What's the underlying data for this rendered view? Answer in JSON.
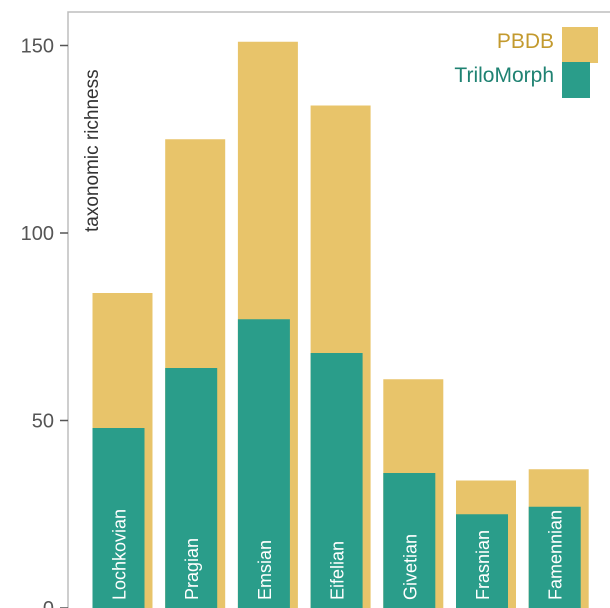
{
  "chart_data": {
    "type": "bar",
    "categories": [
      "Lochkovian",
      "Pragian",
      "Emsian",
      "Eifelian",
      "Givetian",
      "Frasnian",
      "Famennian"
    ],
    "series": [
      {
        "name": "PBDB",
        "values": [
          84,
          125,
          151,
          134,
          61,
          34,
          37
        ],
        "color": "#E8C46A"
      },
      {
        "name": "TriloMorph",
        "values": [
          48,
          64,
          77,
          68,
          36,
          25,
          27
        ],
        "color": "#2A9D8A"
      }
    ],
    "ylabel": "taxonomic richness",
    "ylim": [
      0,
      160
    ],
    "yticks": [
      0,
      50,
      100,
      150
    ],
    "grid": false,
    "legend_position": "top-right",
    "bars_overlaid": true
  }
}
